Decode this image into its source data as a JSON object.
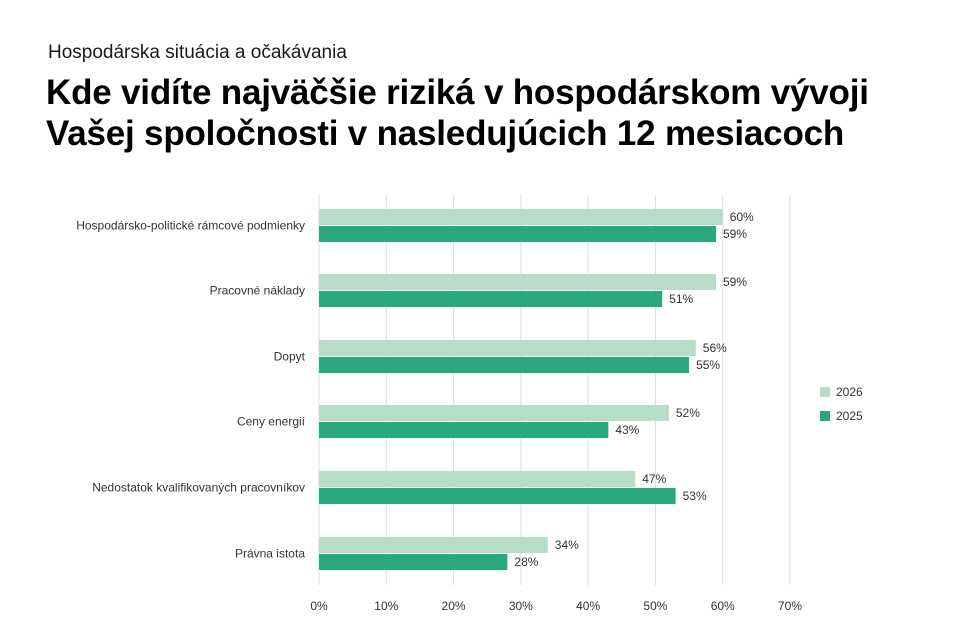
{
  "header": {
    "subtitle": "Hospodárska situácia a očakávania",
    "title_line1": "Kde vidíte najväčšie riziká v hospodárskom vývoji",
    "title_line2": "Vašej spoločnosti v nasledujúcich 12 mesiacoch"
  },
  "chart_data": {
    "type": "bar",
    "orientation": "horizontal",
    "categories": [
      "Hospodársko-politické rámcové podmienky",
      "Pracovné náklady",
      "Dopyt",
      "Ceny energií",
      "Nedostatok kvalifikovaných pracovníkov",
      "Právna istota"
    ],
    "series": [
      {
        "name": "2026",
        "color": "#b7dcc8",
        "values": [
          60,
          59,
          56,
          52,
          47,
          34
        ],
        "labels": [
          "60%",
          "59%",
          "56%",
          "52%",
          "47%",
          "34%"
        ]
      },
      {
        "name": "2025",
        "color": "#2aa97f",
        "values": [
          59,
          51,
          55,
          43,
          53,
          28
        ],
        "labels": [
          "59%",
          "51%",
          "55%",
          "43%",
          "53%",
          "28%"
        ]
      }
    ],
    "xlim": [
      0,
      70
    ],
    "xticks": [
      0,
      10,
      20,
      30,
      40,
      50,
      60,
      70
    ],
    "xtick_labels": [
      "0%",
      "10%",
      "20%",
      "30%",
      "40%",
      "50%",
      "60%",
      "70%"
    ],
    "grid": true,
    "legend_position": "right"
  }
}
